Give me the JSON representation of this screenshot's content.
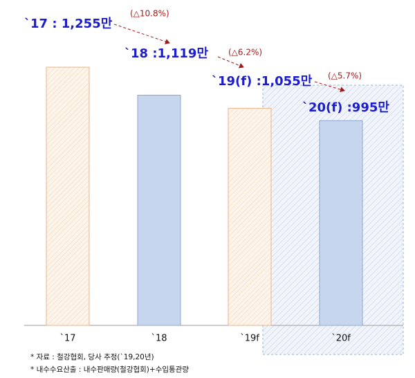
{
  "chart_data": {
    "type": "bar",
    "categories": [
      "`17",
      "`18",
      "`19f",
      "`20f"
    ],
    "values": [
      1255,
      1119,
      1055,
      995
    ],
    "value_labels": [
      "`17 : 1,255만",
      "`18 :1,119만",
      "`19(f) :1,055만",
      "`20(f) :995만"
    ],
    "colors": [
      "#f2c9a4",
      "#c6d6ef",
      "#f2c9a4",
      "#c6d6ef"
    ],
    "annotations": [
      "(△10.8%)",
      "(△6.2%)",
      "(△5.7%)"
    ],
    "notes": [
      "* 자료 :  철강협회, 당사 추정(`19,20년)",
      "* 내수수요산출 : 내수판매량(철강협회)+수입통관량"
    ]
  }
}
